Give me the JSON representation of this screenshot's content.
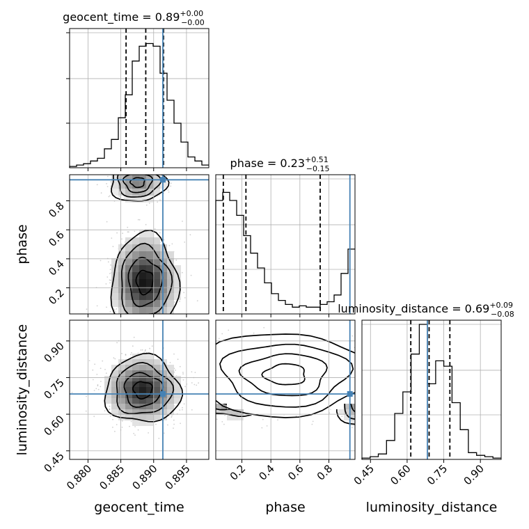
{
  "chart_data": {
    "type": "corner",
    "parameters": [
      "geocent_time",
      "phase",
      "luminosity_distance"
    ],
    "titles": [
      {
        "param": "geocent_time",
        "text": "geocent_time = 0.89",
        "plus": "+0.00",
        "minus": "−0.00"
      },
      {
        "param": "phase",
        "text": "phase = 0.23",
        "plus": "+0.51",
        "minus": "−0.15"
      },
      {
        "param": "luminosity_distance",
        "text": "luminosity_distance = 0.69",
        "plus": "+0.09",
        "minus": "−0.08"
      }
    ],
    "axis_labels": {
      "geocent_time": "geocent_time",
      "phase": "phase",
      "luminosity_distance": "luminosity_distance"
    },
    "ranges": {
      "geocent_time": [
        0.8772,
        0.8984
      ],
      "phase": [
        0.02,
        0.98
      ],
      "luminosity_distance": [
        0.415,
        0.985
      ]
    },
    "ticks": {
      "geocent_time": [
        "0.880",
        "0.885",
        "0.890",
        "0.895"
      ],
      "phase": [
        "0.2",
        "0.4",
        "0.6",
        "0.8"
      ],
      "luminosity_distance": [
        "0.45",
        "0.60",
        "0.75",
        "0.90"
      ]
    },
    "truths": {
      "geocent_time": 0.8914,
      "phase": 0.945,
      "luminosity_distance": 0.683
    },
    "quantiles": {
      "geocent_time": [
        0.8858,
        0.8888,
        0.8915
      ],
      "phase": [
        0.072,
        0.228,
        0.74
      ],
      "luminosity_distance": [
        0.615,
        0.69,
        0.775
      ]
    },
    "histograms": {
      "geocent_time": {
        "edges": [
          0.8772,
          0.8984
        ],
        "counts": [
          0.01,
          0.02,
          0.03,
          0.05,
          0.07,
          0.14,
          0.21,
          0.37,
          0.54,
          0.79,
          0.9,
          0.92,
          0.9,
          0.7,
          0.5,
          0.33,
          0.19,
          0.08,
          0.05,
          0.02
        ]
      },
      "phase": {
        "edges": [
          0.02,
          0.98
        ],
        "counts": [
          0.84,
          0.9,
          0.84,
          0.73,
          0.58,
          0.45,
          0.34,
          0.23,
          0.15,
          0.1,
          0.07,
          0.05,
          0.06,
          0.05,
          0.05,
          0.07,
          0.09,
          0.14,
          0.3,
          0.48
        ]
      },
      "luminosity_distance": {
        "edges": [
          0.415,
          0.985
        ],
        "counts": [
          0.01,
          0.02,
          0.04,
          0.14,
          0.34,
          0.5,
          0.78,
          1.0,
          0.56,
          0.73,
          0.69,
          0.42,
          0.22,
          0.05,
          0.03,
          0.02,
          0.01
        ]
      }
    },
    "grid": true,
    "truth_color": "#4682b4"
  }
}
